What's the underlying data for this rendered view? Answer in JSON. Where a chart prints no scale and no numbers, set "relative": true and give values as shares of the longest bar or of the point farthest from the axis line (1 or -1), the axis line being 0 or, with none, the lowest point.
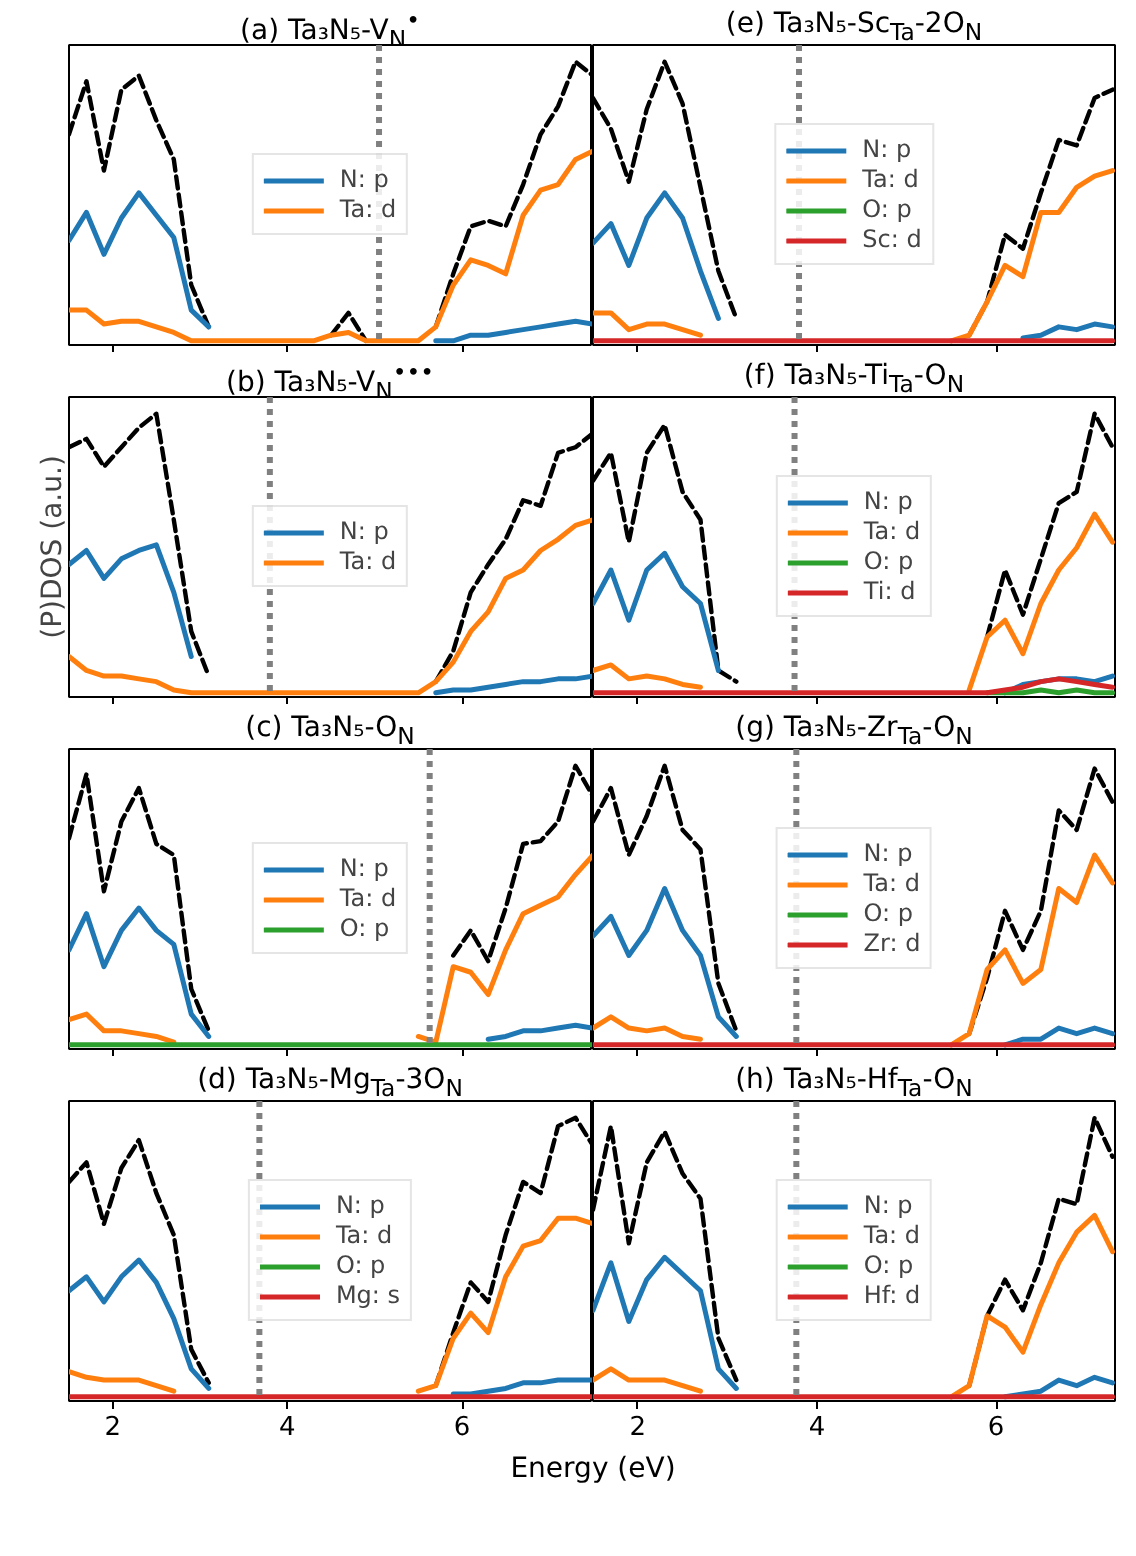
{
  "chart_data": [
    {
      "type": "line",
      "title": "(a) Ta₃N₅-V$_{N}$$^{•}$",
      "relative": true,
      "legend": "center",
      "tick_labels": false,
      "xlim": [
        1.5,
        7.5
      ],
      "xticks": [
        2,
        4,
        6
      ],
      "x": [
        1.5,
        1.7,
        1.9,
        2.1,
        2.3,
        2.5,
        2.7,
        2.9,
        3.1,
        3.3,
        3.5,
        3.7,
        3.9,
        4.1,
        4.3,
        4.5,
        4.7,
        4.9,
        5.1,
        5.3,
        5.5,
        5.7,
        5.9,
        6.1,
        6.3,
        6.5,
        6.7,
        6.9,
        7.1,
        7.3,
        7.5
      ],
      "ref_lines": [
        {
          "axis": "x",
          "value": 5.05,
          "color": "#808080",
          "line_style": "dotted"
        }
      ],
      "series": [
        {
          "color": "#000000",
          "line_style": "dashed",
          "values": [
            0.74,
            0.93,
            0.61,
            0.9,
            0.95,
            0.79,
            0.65,
            0.2,
            0.05,
            null,
            null,
            null,
            null,
            null,
            null,
            0.02,
            0.1,
            0,
            null,
            null,
            null,
            0.05,
            0.24,
            0.41,
            0.43,
            0.41,
            0.56,
            0.74,
            0.84,
            1.0,
            0.95
          ]
        },
        {
          "name": "N: p",
          "color": "#1f77b4",
          "values": [
            0.36,
            0.46,
            0.31,
            0.44,
            0.53,
            0.45,
            0.37,
            0.11,
            0.05,
            null,
            null,
            null,
            null,
            null,
            null,
            null,
            null,
            null,
            null,
            null,
            null,
            0,
            0,
            0.02,
            0.02,
            0.03,
            0.04,
            0.05,
            0.06,
            0.07,
            0.06
          ]
        },
        {
          "name": "Ta: d",
          "color": "#ff7f0e",
          "values": [
            0.11,
            0.11,
            0.06,
            0.07,
            0.07,
            0.05,
            0.03,
            0,
            0,
            0,
            0,
            0,
            0,
            0,
            0,
            0.02,
            0.03,
            0,
            0,
            0,
            0,
            0.05,
            0.2,
            0.29,
            0.27,
            0.24,
            0.45,
            0.54,
            0.56,
            0.65,
            0.68
          ]
        }
      ]
    },
    {
      "type": "line",
      "title": "(b) Ta₃N₅-V$_{N}$$^{•••}$",
      "ylabel": "(P)DOS (a.u.)",
      "relative": true,
      "legend": "center",
      "tick_labels": false,
      "xlim": [
        1.5,
        7.5
      ],
      "xticks": [
        2,
        4,
        6
      ],
      "x": [
        1.5,
        1.7,
        1.9,
        2.1,
        2.3,
        2.5,
        2.7,
        2.9,
        3.1,
        3.3,
        3.5,
        3.7,
        3.9,
        4.1,
        4.3,
        4.5,
        4.7,
        4.9,
        5.1,
        5.3,
        5.5,
        5.7,
        5.9,
        6.1,
        6.3,
        6.5,
        6.7,
        6.9,
        7.1,
        7.3,
        7.5
      ],
      "ref_lines": [
        {
          "axis": "x",
          "value": 3.8,
          "color": "#808080",
          "line_style": "dotted"
        }
      ],
      "series": [
        {
          "color": "#000000",
          "line_style": "dashed",
          "values": [
            0.88,
            0.91,
            0.81,
            0.88,
            0.95,
            1.0,
            0.62,
            0.22,
            0.06,
            null,
            null,
            null,
            null,
            null,
            null,
            null,
            null,
            null,
            null,
            null,
            null,
            0.04,
            0.15,
            0.36,
            0.46,
            0.55,
            0.69,
            0.67,
            0.86,
            0.88,
            0.93
          ]
        },
        {
          "name": "N: p",
          "color": "#1f77b4",
          "values": [
            0.46,
            0.51,
            0.41,
            0.48,
            0.51,
            0.53,
            0.36,
            0.13,
            null,
            null,
            null,
            null,
            null,
            null,
            null,
            null,
            null,
            null,
            null,
            null,
            null,
            0,
            0.01,
            0.01,
            0.02,
            0.03,
            0.04,
            0.04,
            0.05,
            0.05,
            0.06
          ]
        },
        {
          "name": "Ta: d",
          "color": "#ff7f0e",
          "values": [
            0.13,
            0.08,
            0.06,
            0.06,
            0.05,
            0.04,
            0.01,
            0,
            0,
            0,
            0,
            0,
            0,
            0,
            0,
            0,
            0,
            0,
            0,
            0,
            0,
            0.04,
            0.11,
            0.22,
            0.29,
            0.41,
            0.44,
            0.51,
            0.55,
            0.6,
            0.62
          ]
        }
      ]
    },
    {
      "type": "line",
      "title": "(c) Ta₃N₅-O$_{N}$",
      "relative": true,
      "legend": "center",
      "tick_labels": false,
      "xlim": [
        1.5,
        7.5
      ],
      "xticks": [
        2,
        4,
        6
      ],
      "x": [
        1.5,
        1.7,
        1.9,
        2.1,
        2.3,
        2.5,
        2.7,
        2.9,
        3.1,
        3.3,
        3.5,
        3.7,
        3.9,
        4.1,
        4.3,
        4.5,
        4.7,
        4.9,
        5.1,
        5.3,
        5.5,
        5.7,
        5.9,
        6.1,
        6.3,
        6.5,
        6.7,
        6.9,
        7.1,
        7.3,
        7.5
      ],
      "ref_lines": [
        {
          "axis": "x",
          "value": 5.63,
          "color": "#808080",
          "line_style": "dotted"
        }
      ],
      "series": [
        {
          "color": "#000000",
          "line_style": "dashed",
          "values": [
            0.74,
            0.97,
            0.55,
            0.8,
            0.92,
            0.72,
            0.68,
            0.2,
            0.05,
            null,
            null,
            null,
            null,
            null,
            null,
            null,
            null,
            null,
            null,
            null,
            null,
            null,
            0.32,
            0.41,
            0.3,
            0.49,
            0.72,
            0.73,
            0.8,
            1.0,
            0.89
          ]
        },
        {
          "name": "N: p",
          "color": "#1f77b4",
          "values": [
            0.34,
            0.47,
            0.28,
            0.41,
            0.49,
            0.41,
            0.36,
            0.11,
            0.03,
            null,
            null,
            null,
            null,
            null,
            null,
            null,
            null,
            null,
            null,
            null,
            null,
            null,
            null,
            null,
            0.02,
            0.03,
            0.05,
            0.05,
            0.06,
            0.07,
            0.06
          ]
        },
        {
          "name": "Ta: d",
          "color": "#ff7f0e",
          "values": [
            0.09,
            0.11,
            0.05,
            0.05,
            0.04,
            0.03,
            0.01,
            null,
            null,
            null,
            null,
            null,
            null,
            null,
            null,
            null,
            null,
            null,
            null,
            null,
            0.03,
            0.01,
            0.28,
            0.26,
            0.18,
            0.34,
            0.47,
            0.5,
            0.53,
            0.61,
            0.68
          ]
        },
        {
          "name": "O: p",
          "color": "#2ca02c",
          "values": [
            0,
            0,
            0,
            0,
            0,
            0,
            0,
            0,
            0,
            0,
            0,
            0,
            0,
            0,
            0,
            0,
            0,
            0,
            0,
            0,
            0,
            0,
            0,
            0,
            0,
            0,
            0,
            0,
            0,
            0,
            0
          ]
        }
      ]
    },
    {
      "type": "line",
      "title": "(d) Ta₃N₅-Mg$_{Ta}$-3O$_{N}$",
      "xlabel": "Energy (eV)",
      "relative": true,
      "legend": "center",
      "tick_labels": "x",
      "xlim": [
        1.5,
        7.5
      ],
      "xticks": [
        2,
        4,
        6
      ],
      "x": [
        1.5,
        1.7,
        1.9,
        2.1,
        2.3,
        2.5,
        2.7,
        2.9,
        3.1,
        3.3,
        3.5,
        3.7,
        3.9,
        4.1,
        4.3,
        4.5,
        4.7,
        4.9,
        5.1,
        5.3,
        5.5,
        5.7,
        5.9,
        6.1,
        6.3,
        6.5,
        6.7,
        6.9,
        7.1,
        7.3,
        7.5
      ],
      "ref_lines": [
        {
          "axis": "x",
          "value": 3.68,
          "color": "#808080",
          "line_style": "dotted"
        }
      ],
      "series": [
        {
          "color": "#000000",
          "line_style": "dashed",
          "values": [
            0.77,
            0.84,
            0.62,
            0.82,
            0.92,
            0.73,
            0.58,
            0.17,
            0.05,
            null,
            null,
            null,
            null,
            null,
            null,
            null,
            null,
            null,
            null,
            null,
            null,
            0.04,
            0.23,
            0.41,
            0.34,
            0.58,
            0.77,
            0.73,
            0.97,
            1.0,
            0.9
          ]
        },
        {
          "name": "N: p",
          "color": "#1f77b4",
          "values": [
            0.38,
            0.43,
            0.34,
            0.43,
            0.49,
            0.41,
            0.28,
            0.1,
            0.03,
            null,
            null,
            null,
            null,
            null,
            null,
            null,
            null,
            null,
            null,
            null,
            null,
            null,
            0.01,
            0.01,
            0.02,
            0.03,
            0.05,
            0.05,
            0.06,
            0.06,
            0.06
          ]
        },
        {
          "name": "Ta: d",
          "color": "#ff7f0e",
          "values": [
            0.09,
            0.07,
            0.06,
            0.06,
            0.06,
            0.04,
            0.02,
            null,
            null,
            null,
            null,
            null,
            null,
            null,
            null,
            null,
            null,
            null,
            null,
            null,
            0.02,
            0.04,
            0.21,
            0.3,
            0.23,
            0.43,
            0.54,
            0.56,
            0.64,
            0.64,
            0.62
          ]
        },
        {
          "name": "O: p",
          "color": "#2ca02c",
          "values": [
            null,
            null,
            null,
            null,
            null,
            null,
            null,
            null,
            null,
            null,
            null,
            null,
            null,
            null,
            null,
            null,
            null,
            null,
            null,
            null,
            null,
            null,
            null,
            null,
            null,
            null,
            null,
            null,
            null,
            null,
            null
          ]
        },
        {
          "name": "Mg: s",
          "color": "#d62728",
          "values": [
            0,
            0,
            0,
            0,
            0,
            0,
            0,
            0,
            0,
            0,
            0,
            0,
            0,
            0,
            0,
            0,
            0,
            0,
            0,
            0,
            0,
            0,
            0,
            0,
            0,
            0,
            0,
            0,
            0,
            0,
            0
          ]
        }
      ]
    },
    {
      "type": "line",
      "title": "(e) Ta₃N₅-Sc$_{Ta}$-2O$_{N}$",
      "relative": true,
      "legend": "center",
      "tick_labels": false,
      "xlim": [
        1.5,
        7.35
      ],
      "xticks": [
        2,
        4,
        6
      ],
      "x": [
        1.5,
        1.7,
        1.9,
        2.1,
        2.3,
        2.5,
        2.7,
        2.9,
        3.1,
        3.3,
        3.5,
        3.7,
        3.9,
        4.1,
        4.3,
        4.5,
        4.7,
        4.9,
        5.1,
        5.3,
        5.5,
        5.7,
        5.9,
        6.1,
        6.3,
        6.5,
        6.7,
        6.9,
        7.1,
        7.3
      ],
      "ref_lines": [
        {
          "axis": "x",
          "value": 3.8,
          "color": "#808080",
          "line_style": "dotted"
        }
      ],
      "series": [
        {
          "color": "#000000",
          "line_style": "dashed",
          "values": [
            0.87,
            0.76,
            0.57,
            0.83,
            1.0,
            0.85,
            0.55,
            0.25,
            0.08,
            null,
            null,
            null,
            null,
            null,
            null,
            null,
            null,
            null,
            null,
            null,
            null,
            0.02,
            0.14,
            0.38,
            0.33,
            0.53,
            0.72,
            0.7,
            0.87,
            0.9
          ]
        },
        {
          "name": "N: p",
          "color": "#1f77b4",
          "values": [
            0.35,
            0.42,
            0.27,
            0.44,
            0.53,
            0.44,
            0.25,
            0.08,
            null,
            null,
            null,
            null,
            null,
            null,
            null,
            null,
            null,
            null,
            null,
            null,
            null,
            null,
            null,
            null,
            0.01,
            0.02,
            0.05,
            0.04,
            0.06,
            0.05
          ]
        },
        {
          "name": "Ta: d",
          "color": "#ff7f0e",
          "values": [
            0.1,
            0.1,
            0.04,
            0.06,
            0.06,
            0.04,
            0.02,
            null,
            null,
            null,
            null,
            null,
            null,
            null,
            null,
            null,
            null,
            null,
            null,
            null,
            0,
            0.02,
            0.14,
            0.27,
            0.23,
            0.46,
            0.46,
            0.55,
            0.59,
            0.61
          ]
        },
        {
          "name": "O: p",
          "color": "#2ca02c",
          "values": [
            null,
            null,
            null,
            null,
            null,
            null,
            null,
            null,
            null,
            null,
            null,
            null,
            null,
            null,
            null,
            null,
            null,
            null,
            null,
            null,
            null,
            null,
            null,
            null,
            null,
            null,
            null,
            null,
            null,
            null
          ]
        },
        {
          "name": "Sc: d",
          "color": "#d62728",
          "values": [
            0,
            0,
            0,
            0,
            0,
            0,
            0,
            0,
            0,
            0,
            0,
            0,
            0,
            0,
            0,
            0,
            0,
            0,
            0,
            0,
            0,
            0,
            0,
            0,
            0,
            0,
            0,
            0,
            0,
            0
          ]
        }
      ]
    },
    {
      "type": "line",
      "title": "(f) Ta₃N₅-Ti$_{Ta}$-O$_{N}$",
      "relative": true,
      "legend": "center",
      "tick_labels": false,
      "xlim": [
        1.5,
        7.35
      ],
      "xticks": [
        2,
        4,
        6
      ],
      "x": [
        1.5,
        1.7,
        1.9,
        2.1,
        2.3,
        2.5,
        2.7,
        2.9,
        3.1,
        3.3,
        3.5,
        3.7,
        3.9,
        4.1,
        4.3,
        4.5,
        4.7,
        4.9,
        5.1,
        5.3,
        5.5,
        5.7,
        5.9,
        6.1,
        6.3,
        6.5,
        6.7,
        6.9,
        7.1,
        7.3
      ],
      "ref_lines": [
        {
          "axis": "x",
          "value": 3.75,
          "color": "#808080",
          "line_style": "dotted"
        }
      ],
      "series": [
        {
          "color": "#000000",
          "line_style": "dashed",
          "values": [
            0.76,
            0.86,
            0.54,
            0.86,
            0.96,
            0.72,
            0.62,
            0.08,
            0.04,
            null,
            null,
            null,
            null,
            null,
            null,
            null,
            null,
            null,
            null,
            null,
            null,
            null,
            0.2,
            0.44,
            0.28,
            0.48,
            0.68,
            0.72,
            1.0,
            0.88
          ]
        },
        {
          "name": "N: p",
          "color": "#1f77b4",
          "values": [
            0.32,
            0.44,
            0.26,
            0.44,
            0.5,
            0.38,
            0.32,
            0.08,
            null,
            null,
            null,
            null,
            null,
            null,
            null,
            null,
            null,
            null,
            null,
            null,
            null,
            null,
            null,
            0,
            0.03,
            0.04,
            0.05,
            0.05,
            0.04,
            0.06
          ]
        },
        {
          "name": "Ta: d",
          "color": "#ff7f0e",
          "values": [
            0.08,
            0.1,
            0.05,
            0.06,
            0.05,
            0.03,
            0.02,
            null,
            null,
            null,
            null,
            null,
            null,
            null,
            null,
            null,
            null,
            null,
            null,
            null,
            null,
            0.01,
            0.2,
            0.26,
            0.14,
            0.32,
            0.44,
            0.52,
            0.64,
            0.54
          ]
        },
        {
          "name": "O: p",
          "color": "#2ca02c",
          "values": [
            null,
            null,
            null,
            null,
            null,
            null,
            null,
            null,
            null,
            null,
            null,
            null,
            null,
            null,
            null,
            null,
            null,
            null,
            null,
            null,
            null,
            null,
            0,
            0,
            0,
            0.01,
            0,
            0.01,
            0,
            0
          ]
        },
        {
          "name": "Ti: d",
          "color": "#d62728",
          "values": [
            0,
            0,
            0,
            0,
            0,
            0,
            0,
            0,
            0,
            0,
            0,
            0,
            0,
            0,
            0,
            0,
            0,
            0,
            0,
            0,
            0,
            0,
            0,
            0.01,
            0.02,
            0.04,
            0.05,
            0.04,
            0.03,
            0.02
          ]
        }
      ]
    },
    {
      "type": "line",
      "title": "(g) Ta₃N₅-Zr$_{Ta}$-O$_{N}$",
      "relative": true,
      "legend": "center",
      "tick_labels": false,
      "xlim": [
        1.5,
        7.35
      ],
      "xticks": [
        2,
        4,
        6
      ],
      "x": [
        1.5,
        1.7,
        1.9,
        2.1,
        2.3,
        2.5,
        2.7,
        2.9,
        3.1,
        3.3,
        3.5,
        3.7,
        3.9,
        4.1,
        4.3,
        4.5,
        4.7,
        4.9,
        5.1,
        5.3,
        5.5,
        5.7,
        5.9,
        6.1,
        6.3,
        6.5,
        6.7,
        6.9,
        7.1,
        7.3
      ],
      "ref_lines": [
        {
          "axis": "x",
          "value": 3.77,
          "color": "#808080",
          "line_style": "dotted"
        }
      ],
      "series": [
        {
          "color": "#000000",
          "line_style": "dashed",
          "values": [
            0.8,
            0.92,
            0.68,
            0.82,
            1.0,
            0.77,
            0.7,
            0.22,
            0.05,
            null,
            null,
            null,
            null,
            null,
            null,
            null,
            null,
            null,
            null,
            null,
            null,
            0.04,
            0.24,
            0.48,
            0.34,
            0.48,
            0.84,
            0.77,
            0.99,
            0.87
          ]
        },
        {
          "name": "N: p",
          "color": "#1f77b4",
          "values": [
            0.39,
            0.46,
            0.32,
            0.41,
            0.56,
            0.41,
            0.32,
            0.1,
            0.03,
            null,
            null,
            null,
            null,
            null,
            null,
            null,
            null,
            null,
            null,
            null,
            null,
            null,
            null,
            0,
            0.02,
            0.02,
            0.06,
            0.04,
            0.06,
            0.04
          ]
        },
        {
          "name": "Ta: d",
          "color": "#ff7f0e",
          "values": [
            0.06,
            0.1,
            0.06,
            0.05,
            0.06,
            0.03,
            0.02,
            null,
            null,
            null,
            null,
            null,
            null,
            null,
            null,
            null,
            null,
            null,
            null,
            null,
            0,
            0.04,
            0.27,
            0.34,
            0.22,
            0.27,
            0.56,
            0.51,
            0.68,
            0.58
          ]
        },
        {
          "name": "O: p",
          "color": "#2ca02c",
          "values": [
            null,
            null,
            null,
            null,
            null,
            null,
            null,
            null,
            null,
            null,
            null,
            null,
            null,
            null,
            null,
            null,
            null,
            null,
            null,
            null,
            null,
            null,
            null,
            null,
            null,
            null,
            null,
            null,
            null,
            null
          ]
        },
        {
          "name": "Zr: d",
          "color": "#d62728",
          "values": [
            0,
            0,
            0,
            0,
            0,
            0,
            0,
            0,
            0,
            0,
            0,
            0,
            0,
            0,
            0,
            0,
            0,
            0,
            0,
            0,
            0,
            0,
            0,
            0,
            0,
            0,
            0,
            0,
            0,
            0
          ]
        }
      ]
    },
    {
      "type": "line",
      "title": "(h) Ta₃N₅-Hf$_{Ta}$-O$_{N}$",
      "relative": true,
      "legend": "center",
      "tick_labels": "x",
      "xlim": [
        1.5,
        7.35
      ],
      "xticks": [
        2,
        4,
        6
      ],
      "x": [
        1.5,
        1.7,
        1.9,
        2.1,
        2.3,
        2.5,
        2.7,
        2.9,
        3.1,
        3.3,
        3.5,
        3.7,
        3.9,
        4.1,
        4.3,
        4.5,
        4.7,
        4.9,
        5.1,
        5.3,
        5.5,
        5.7,
        5.9,
        6.1,
        6.3,
        6.5,
        6.7,
        6.9,
        7.1,
        7.3
      ],
      "ref_lines": [
        {
          "axis": "x",
          "value": 3.77,
          "color": "#808080",
          "line_style": "dotted"
        }
      ],
      "series": [
        {
          "color": "#000000",
          "line_style": "dashed",
          "values": [
            0.67,
            0.97,
            0.55,
            0.84,
            0.95,
            0.8,
            0.71,
            0.21,
            0.06,
            null,
            null,
            null,
            null,
            null,
            null,
            null,
            null,
            null,
            null,
            null,
            null,
            0.04,
            0.29,
            0.42,
            0.31,
            0.48,
            0.71,
            0.69,
            1.0,
            0.86
          ]
        },
        {
          "name": "N: p",
          "color": "#1f77b4",
          "values": [
            0.31,
            0.48,
            0.27,
            0.42,
            0.5,
            0.44,
            0.38,
            0.1,
            0.03,
            null,
            null,
            null,
            null,
            null,
            null,
            null,
            null,
            null,
            null,
            null,
            null,
            null,
            null,
            0,
            0.01,
            0.02,
            0.06,
            0.04,
            0.07,
            0.05
          ]
        },
        {
          "name": "Ta: d",
          "color": "#ff7f0e",
          "values": [
            0.06,
            0.1,
            0.06,
            0.06,
            0.06,
            0.04,
            0.02,
            null,
            null,
            null,
            null,
            null,
            null,
            null,
            null,
            null,
            null,
            null,
            null,
            null,
            0,
            0.04,
            0.29,
            0.25,
            0.16,
            0.33,
            0.48,
            0.59,
            0.65,
            0.52
          ]
        },
        {
          "name": "O: p",
          "color": "#2ca02c",
          "values": [
            null,
            null,
            null,
            null,
            null,
            null,
            null,
            null,
            null,
            null,
            null,
            null,
            null,
            null,
            null,
            null,
            null,
            null,
            null,
            null,
            null,
            null,
            null,
            null,
            null,
            null,
            null,
            null,
            null,
            null
          ]
        },
        {
          "name": "Hf: d",
          "color": "#d62728",
          "values": [
            0,
            0,
            0,
            0,
            0,
            0,
            0,
            0,
            0,
            0,
            0,
            0,
            0,
            0,
            0,
            0,
            0,
            0,
            0,
            0,
            0,
            0,
            0,
            0,
            0,
            0,
            0,
            0,
            0,
            0
          ]
        }
      ]
    }
  ]
}
